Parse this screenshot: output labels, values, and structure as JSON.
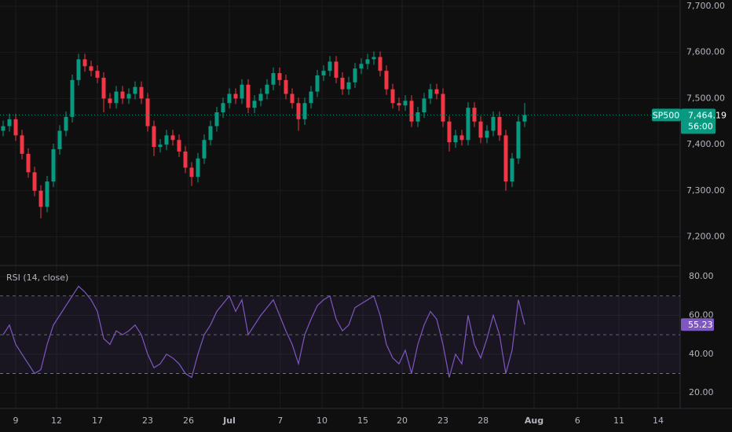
{
  "chart_data": [
    {
      "type": "candlestick",
      "symbol": "SP500",
      "last_label": "7,464.19",
      "countdown": "56:00",
      "up_color": "#089981",
      "down_color": "#f23645",
      "xlim": [
        0,
        108
      ],
      "ylim": [
        7137.8,
        7713.6
      ],
      "yticks": [
        {
          "value": 7700,
          "label": "7,700.00"
        },
        {
          "value": 7600,
          "label": "7,600.00"
        },
        {
          "value": 7500,
          "label": "7,500.00"
        },
        {
          "value": 7400,
          "label": "7,400.00"
        },
        {
          "value": 7300,
          "label": "7,300.00"
        },
        {
          "value": 7200,
          "label": "7,200.00"
        }
      ],
      "open": [
        7430,
        7440,
        7455,
        7420,
        7380,
        7340,
        7300,
        7265,
        7320,
        7390,
        7430,
        7460,
        7540,
        7585,
        7570,
        7560,
        7545,
        7500,
        7490,
        7515,
        7500,
        7510,
        7525,
        7500,
        7440,
        7395,
        7400,
        7420,
        7410,
        7385,
        7350,
        7330,
        7370,
        7410,
        7440,
        7470,
        7490,
        7510,
        7500,
        7530,
        7480,
        7495,
        7510,
        7530,
        7555,
        7540,
        7510,
        7490,
        7455,
        7490,
        7515,
        7550,
        7560,
        7580,
        7545,
        7520,
        7535,
        7565,
        7575,
        7585,
        7590,
        7560,
        7520,
        7490,
        7485,
        7495,
        7450,
        7470,
        7500,
        7520,
        7510,
        7450,
        7405,
        7420,
        7410,
        7480,
        7450,
        7415,
        7430,
        7460,
        7420,
        7320,
        7370,
        7450
      ],
      "high": [
        7452,
        7467,
        7467,
        7432,
        7392,
        7352,
        7312,
        7332,
        7402,
        7442,
        7472,
        7552,
        7597,
        7597,
        7582,
        7572,
        7557,
        7512,
        7527,
        7527,
        7522,
        7537,
        7537,
        7512,
        7452,
        7412,
        7432,
        7432,
        7422,
        7397,
        7362,
        7382,
        7422,
        7452,
        7482,
        7502,
        7522,
        7522,
        7542,
        7542,
        7507,
        7522,
        7542,
        7567,
        7567,
        7552,
        7522,
        7502,
        7502,
        7527,
        7562,
        7572,
        7592,
        7592,
        7557,
        7547,
        7577,
        7587,
        7597,
        7602,
        7602,
        7572,
        7532,
        7502,
        7507,
        7507,
        7482,
        7512,
        7532,
        7532,
        7522,
        7462,
        7432,
        7432,
        7492,
        7492,
        7462,
        7442,
        7472,
        7472,
        7432,
        7382,
        7462,
        7490
      ],
      "low": [
        7418,
        7428,
        7408,
        7368,
        7328,
        7288,
        7240,
        7253,
        7308,
        7378,
        7418,
        7448,
        7528,
        7558,
        7548,
        7533,
        7470,
        7478,
        7478,
        7488,
        7488,
        7498,
        7488,
        7428,
        7375,
        7383,
        7388,
        7398,
        7373,
        7338,
        7310,
        7318,
        7358,
        7398,
        7428,
        7458,
        7478,
        7488,
        7488,
        7468,
        7468,
        7483,
        7498,
        7518,
        7528,
        7498,
        7478,
        7430,
        7443,
        7478,
        7503,
        7538,
        7548,
        7533,
        7508,
        7508,
        7523,
        7553,
        7563,
        7573,
        7548,
        7508,
        7478,
        7473,
        7473,
        7438,
        7438,
        7458,
        7488,
        7498,
        7438,
        7385,
        7393,
        7398,
        7398,
        7438,
        7403,
        7403,
        7418,
        7408,
        7300,
        7308,
        7358,
        7438
      ],
      "close": [
        7440,
        7455,
        7420,
        7380,
        7340,
        7300,
        7265,
        7320,
        7390,
        7430,
        7460,
        7540,
        7585,
        7570,
        7560,
        7545,
        7500,
        7490,
        7515,
        7500,
        7510,
        7525,
        7500,
        7440,
        7395,
        7400,
        7420,
        7410,
        7385,
        7350,
        7330,
        7370,
        7410,
        7440,
        7470,
        7490,
        7510,
        7500,
        7530,
        7480,
        7495,
        7510,
        7530,
        7555,
        7540,
        7510,
        7490,
        7455,
        7490,
        7515,
        7550,
        7560,
        7580,
        7545,
        7520,
        7535,
        7565,
        7575,
        7585,
        7590,
        7560,
        7520,
        7490,
        7485,
        7495,
        7450,
        7470,
        7500,
        7520,
        7510,
        7450,
        7405,
        7420,
        7410,
        7480,
        7450,
        7415,
        7430,
        7460,
        7420,
        7320,
        7370,
        7450,
        7464.19
      ]
    },
    {
      "type": "line",
      "title": "RSI (14, close)",
      "color": "#7e57c2",
      "last_label": "55.23",
      "xlim": [
        0,
        108
      ],
      "ylim": [
        12,
        85.7
      ],
      "band": [
        30,
        70
      ],
      "midline": 50,
      "yticks": [
        {
          "value": 80,
          "label": "80.00"
        },
        {
          "value": 60,
          "label": "60.00"
        },
        {
          "value": 40,
          "label": "40.00"
        },
        {
          "value": 20,
          "label": "20.00"
        }
      ],
      "xticks": [
        {
          "value": 2.5,
          "label": "9"
        },
        {
          "value": 9,
          "label": "12"
        },
        {
          "value": 15.5,
          "label": "17"
        },
        {
          "value": 23.5,
          "label": "23"
        },
        {
          "value": 30,
          "label": "26"
        },
        {
          "value": 36.5,
          "label": "Jul"
        },
        {
          "value": 44.6,
          "label": "7"
        },
        {
          "value": 51.25,
          "label": "10"
        },
        {
          "value": 57.75,
          "label": "15"
        },
        {
          "value": 64,
          "label": "20"
        },
        {
          "value": 70.5,
          "label": "23"
        },
        {
          "value": 76.9,
          "label": "28"
        },
        {
          "value": 85,
          "label": "Aug"
        },
        {
          "value": 91.9,
          "label": "6"
        },
        {
          "value": 98.5,
          "label": "11"
        },
        {
          "value": 104.75,
          "label": "14"
        }
      ],
      "values": [
        50,
        55,
        45,
        40,
        35,
        30,
        32,
        45,
        55,
        60,
        65,
        70,
        75,
        72,
        68,
        62,
        48,
        45,
        52,
        50,
        52,
        55,
        50,
        40,
        33,
        35,
        40,
        38,
        35,
        30,
        28,
        40,
        50,
        55,
        62,
        66,
        70,
        62,
        68,
        50,
        55,
        60,
        64,
        68,
        60,
        52,
        45,
        35,
        50,
        58,
        65,
        68,
        70,
        58,
        52,
        55,
        64,
        66,
        68,
        70,
        60,
        45,
        38,
        35,
        42,
        30,
        45,
        55,
        62,
        58,
        45,
        28,
        40,
        35,
        60,
        45,
        38,
        48,
        60,
        50,
        30,
        42,
        68,
        55.23
      ]
    }
  ]
}
